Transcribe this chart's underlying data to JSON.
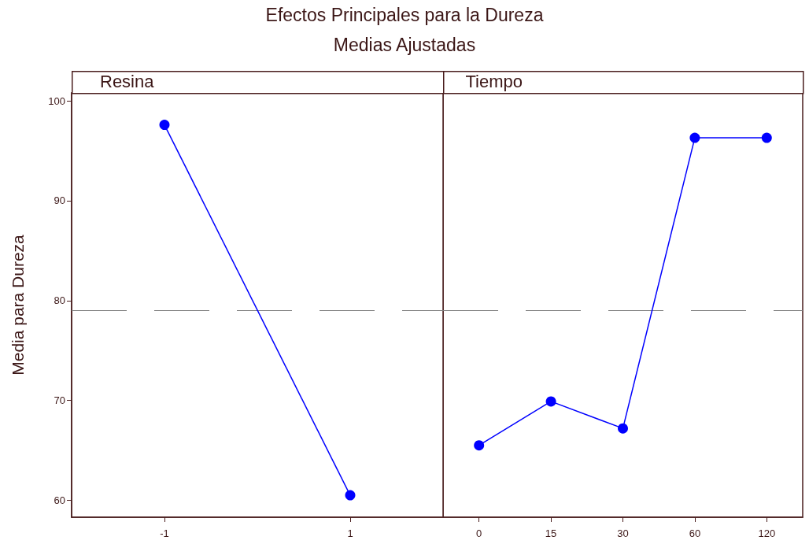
{
  "chart_data": [
    {
      "type": "line",
      "title": "Efectos Principales para la Dureza",
      "subtitle": "Medias Ajustadas",
      "xlabel": "Resina",
      "ylabel": "Media para Dureza",
      "categories": [
        "-1",
        "1"
      ],
      "series": [
        {
          "color": "#0000ff",
          "values": [
            97.6,
            60.5
          ]
        }
      ],
      "ylim": [
        58.3,
        100.8
      ],
      "yticks": [
        60,
        70,
        80,
        90,
        100
      ],
      "ref_lines": [
        {
          "axis": "y",
          "value": 79.0,
          "line_style": "dashed",
          "color": "#808080"
        }
      ],
      "marker": "circle",
      "grid": false
    },
    {
      "type": "line",
      "xlabel": "Tiempo",
      "categories": [
        "0",
        "15",
        "30",
        "60",
        "120"
      ],
      "series": [
        {
          "color": "#0000ff",
          "values": [
            65.5,
            69.9,
            67.2,
            96.3,
            96.3
          ]
        }
      ],
      "ylim": [
        58.3,
        100.8
      ],
      "yticks": [
        60,
        70,
        80,
        90,
        100
      ],
      "ref_lines": [
        {
          "axis": "y",
          "value": 79.0,
          "line_style": "dashed",
          "color": "#808080"
        }
      ],
      "marker": "circle",
      "grid": false,
      "tick_labels": "x"
    }
  ]
}
